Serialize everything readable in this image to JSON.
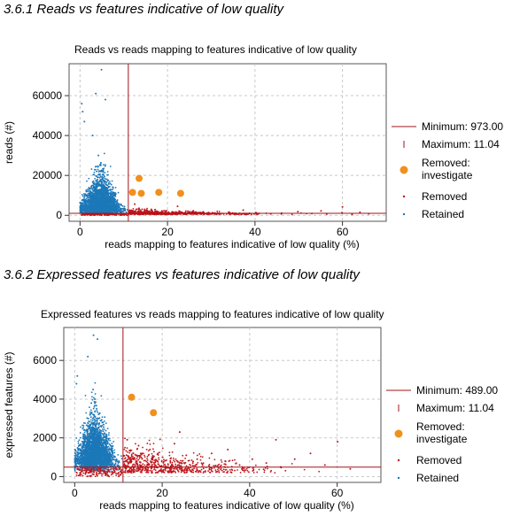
{
  "sections": [
    {
      "heading": "3.6.1 Reads vs features indicative of low quality"
    },
    {
      "heading": "3.6.2 Expressed features vs features indicative of low quality"
    }
  ],
  "chart_data": [
    {
      "type": "scatter",
      "title": "Reads vs reads mapping to features indicative of low quality",
      "xlabel": "reads mapping to features indicative of low quality (%)",
      "ylabel": "reads (#)",
      "xlim": [
        -2.5,
        70
      ],
      "ylim": [
        -3000,
        76000
      ],
      "xticks": [
        0,
        20,
        40,
        60
      ],
      "yticks": [
        0,
        20000,
        40000,
        60000
      ],
      "ytick_labels": [
        "0",
        "20000",
        "40000",
        "60000"
      ],
      "grid": true,
      "legend_position": "right",
      "thresholds": {
        "minimum_label": "Minimum: 973.00",
        "minimum": 973,
        "maximum_label": "Maximum: 11.04",
        "maximum": 11.04
      },
      "series": [
        {
          "name": "Removed: investigate",
          "color": "#f0901e",
          "marker": "circle-large",
          "x": [
            12,
            13.5,
            14,
            18,
            23
          ],
          "y": [
            11500,
            18500,
            11000,
            11500,
            11000
          ]
        },
        {
          "name": "Removed",
          "color": "#c0161c",
          "marker": "dot",
          "x": [
            3.2,
            6.1,
            9.4,
            12.5,
            14.2,
            16.8,
            19.5,
            22.3,
            25.1,
            28.4,
            31.6,
            34.0,
            37.3,
            40.2,
            43.6,
            46.1,
            49.8,
            53.0,
            56.4,
            59.9,
            62.2,
            66.0,
            60.0,
            55.1,
            64.0
          ],
          "y": [
            500,
            400,
            600,
            5600,
            3000,
            1200,
            2000,
            4500,
            1800,
            1000,
            900,
            1600,
            2600,
            1400,
            700,
            1100,
            1800,
            900,
            600,
            1300,
            500,
            800,
            4200,
            2200,
            1500
          ]
        },
        {
          "name": "Retained",
          "color": "#1c78b8",
          "marker": "dot",
          "x": [
            1.5,
            2.4,
            3.1,
            3.8,
            4.2,
            4.6,
            5.0,
            5.5,
            6.0,
            6.8,
            7.5,
            8.3,
            9.2,
            10.1,
            3.6,
            4.9,
            5.8,
            2.9,
            0.4,
            0.6,
            1.0
          ],
          "y": [
            2500,
            6000,
            14000,
            22000,
            30000,
            25000,
            18000,
            12000,
            9000,
            7000,
            5000,
            4000,
            3000,
            2500,
            61000,
            73000,
            58000,
            40000,
            56000,
            52000,
            47000
          ]
        }
      ]
    },
    {
      "type": "scatter",
      "title": "Expressed features vs reads mapping to features indicative of low quality",
      "xlabel": "reads mapping to features indicative of low quality (%)",
      "ylabel": "expressed features (#)",
      "xlim": [
        -2.5,
        70
      ],
      "ylim": [
        -300,
        7700
      ],
      "xticks": [
        0,
        20,
        40,
        60
      ],
      "yticks": [
        0,
        2000,
        4000,
        6000
      ],
      "ytick_labels": [
        "0",
        "2000",
        "4000",
        "6000"
      ],
      "grid": true,
      "legend_position": "right",
      "thresholds": {
        "minimum_label": "Minimum: 489.00",
        "minimum": 489,
        "maximum_label": "Maximum: 11.04",
        "maximum": 11.04
      },
      "series": [
        {
          "name": "Removed: investigate",
          "color": "#f0901e",
          "marker": "circle-large",
          "x": [
            13,
            18
          ],
          "y": [
            4100,
            3300
          ]
        },
        {
          "name": "Removed",
          "color": "#c0161c",
          "marker": "dot",
          "x": [
            2.5,
            5.5,
            8.5,
            12.0,
            14.6,
            17.2,
            20.1,
            22.8,
            25.5,
            28.0,
            31.3,
            34.4,
            37.7,
            40.6,
            43.8,
            47.1,
            50.3,
            53.9,
            57.2,
            60.1,
            63.0,
            24.0,
            35.0,
            46.0
          ],
          "y": [
            200,
            150,
            250,
            1900,
            1600,
            1400,
            1000,
            1700,
            1100,
            900,
            1200,
            800,
            600,
            900,
            700,
            500,
            900,
            1200,
            600,
            1800,
            400,
            2300,
            1400,
            1900
          ]
        },
        {
          "name": "Retained",
          "color": "#1c78b8",
          "marker": "dot",
          "x": [
            1.5,
            2.4,
            3.1,
            3.8,
            4.2,
            4.6,
            5.0,
            5.5,
            6.0,
            6.8,
            7.5,
            8.3,
            9.2,
            10.1,
            4.3,
            5.2,
            3.0,
            0.4,
            0.6
          ],
          "y": [
            1200,
            2000,
            3000,
            3800,
            4500,
            4000,
            3500,
            3000,
            2600,
            2200,
            1800,
            1400,
            1000,
            800,
            7300,
            7100,
            6200,
            4800,
            5200
          ]
        }
      ]
    }
  ],
  "legend_labels": {
    "minimum_1": "Minimum: 973.00",
    "maximum_1": "Maximum: 11.04",
    "minimum_2": "Minimum: 489.00",
    "maximum_2": "Maximum: 11.04",
    "removed_investigate_line1": "Removed:",
    "removed_investigate_line2": "investigate",
    "removed": "Removed",
    "retained": "Retained"
  },
  "colors": {
    "removed_investigate": "#f0901e",
    "removed": "#c0161c",
    "retained": "#1c78b8",
    "threshold": "#a3131a",
    "grid": "#c8c8c8"
  }
}
